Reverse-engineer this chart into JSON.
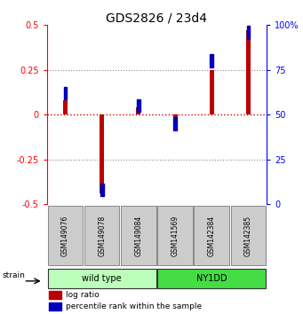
{
  "title": "GDS2826 / 23d4",
  "samples": [
    "GSM149076",
    "GSM149078",
    "GSM149084",
    "GSM141569",
    "GSM142384",
    "GSM142385"
  ],
  "log_ratio": [
    0.08,
    -0.44,
    0.04,
    -0.04,
    0.25,
    0.47
  ],
  "percentile_rank": [
    62,
    8,
    55,
    45,
    80,
    96
  ],
  "ylim_left": [
    -0.5,
    0.5
  ],
  "ylim_right": [
    0,
    100
  ],
  "yticks_left": [
    -0.5,
    -0.25,
    0.0,
    0.25,
    0.5
  ],
  "yticks_right": [
    0,
    25,
    50,
    75,
    100
  ],
  "groups": [
    {
      "label": "wild type",
      "indices": [
        0,
        1,
        2
      ],
      "color": "#bbffbb"
    },
    {
      "label": "NY1DD",
      "indices": [
        3,
        4,
        5
      ],
      "color": "#44dd44"
    }
  ],
  "strain_label": "strain",
  "bar_color_red": "#bb0000",
  "bar_color_blue": "#0000bb",
  "bar_width": 0.12,
  "blue_marker_size": 0.09,
  "legend_red": "log ratio",
  "legend_blue": "percentile rank within the sample",
  "grid_color": "#888888",
  "zero_line_color": "#cc0000",
  "bg_color": "#ffffff",
  "sample_box_color": "#cccccc",
  "title_fontsize": 10,
  "tick_fontsize": 7,
  "label_fontsize": 7
}
